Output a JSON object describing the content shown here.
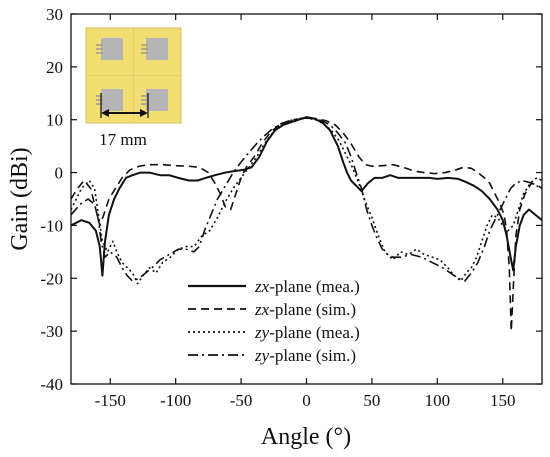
{
  "chart_data": {
    "type": "line",
    "title": "",
    "xlabel": "Angle (°)",
    "ylabel": "Gain (dBi)",
    "xlim": [
      -180,
      180
    ],
    "ylim": [
      -40,
      30
    ],
    "xticks": [
      -150,
      -100,
      -50,
      0,
      50,
      100,
      150
    ],
    "yticks": [
      -40,
      -30,
      -20,
      -10,
      0,
      10,
      20,
      30
    ],
    "grid": false,
    "legend_position": "bottom-center",
    "inset": {
      "description": "antenna array photo",
      "dimension_label": "17 mm",
      "colors": {
        "board": "#f2de73",
        "patch": "#b5b5b5",
        "slot": "#e8e8e8"
      }
    },
    "series": [
      {
        "name_italic": "zx",
        "name_rest": "-plane (mea.)",
        "style": "solid",
        "points": [
          [
            -180,
            -10
          ],
          [
            -172,
            -9
          ],
          [
            -166,
            -9.5
          ],
          [
            -161,
            -11
          ],
          [
            -158,
            -14
          ],
          [
            -156,
            -19.5
          ],
          [
            -154,
            -13
          ],
          [
            -151,
            -8
          ],
          [
            -147,
            -5
          ],
          [
            -143,
            -3
          ],
          [
            -138,
            -1
          ],
          [
            -133,
            -0.5
          ],
          [
            -127,
            0
          ],
          [
            -120,
            0
          ],
          [
            -112,
            -0.5
          ],
          [
            -105,
            -0.5
          ],
          [
            -98,
            -1
          ],
          [
            -90,
            -1.5
          ],
          [
            -83,
            -1.5
          ],
          [
            -77,
            -1
          ],
          [
            -70,
            -0.5
          ],
          [
            -62,
            0
          ],
          [
            -55,
            0.3
          ],
          [
            -48,
            0.5
          ],
          [
            -42,
            1
          ],
          [
            -36,
            3
          ],
          [
            -30,
            6
          ],
          [
            -24,
            8
          ],
          [
            -18,
            9
          ],
          [
            -12,
            9.5
          ],
          [
            -6,
            10
          ],
          [
            0,
            10.5
          ],
          [
            6,
            10.2
          ],
          [
            12,
            9.5
          ],
          [
            18,
            8
          ],
          [
            24,
            5
          ],
          [
            28,
            2
          ],
          [
            31,
            0
          ],
          [
            34,
            -1.5
          ],
          [
            38,
            -2.5
          ],
          [
            42,
            -3.5
          ],
          [
            47,
            -2
          ],
          [
            52,
            -1
          ],
          [
            58,
            -1
          ],
          [
            64,
            -0.5
          ],
          [
            70,
            -1
          ],
          [
            78,
            -1
          ],
          [
            86,
            -1
          ],
          [
            94,
            -1
          ],
          [
            100,
            -1.2
          ],
          [
            108,
            -1
          ],
          [
            116,
            -1.2
          ],
          [
            122,
            -1.8
          ],
          [
            128,
            -2.5
          ],
          [
            134,
            -3.5
          ],
          [
            140,
            -5
          ],
          [
            146,
            -7
          ],
          [
            150,
            -9
          ],
          [
            153,
            -12
          ],
          [
            156,
            -16
          ],
          [
            158,
            -18.5
          ],
          [
            160,
            -14
          ],
          [
            163,
            -10
          ],
          [
            166,
            -8
          ],
          [
            170,
            -7
          ],
          [
            175,
            -8
          ],
          [
            180,
            -9
          ]
        ]
      },
      {
        "name_italic": "zx",
        "name_rest": "-plane (sim.)",
        "style": "dashed",
        "points": [
          [
            -180,
            -5
          ],
          [
            -175,
            -3
          ],
          [
            -170,
            -1.5
          ],
          [
            -165,
            -3
          ],
          [
            -161,
            -7
          ],
          [
            -158,
            -10
          ],
          [
            -155,
            -8
          ],
          [
            -151,
            -5
          ],
          [
            -146,
            -3
          ],
          [
            -141,
            -1
          ],
          [
            -135,
            0.5
          ],
          [
            -128,
            1.2
          ],
          [
            -120,
            1.5
          ],
          [
            -110,
            1.5
          ],
          [
            -100,
            1.3
          ],
          [
            -90,
            1.2
          ],
          [
            -82,
            1
          ],
          [
            -75,
            0
          ],
          [
            -70,
            -2
          ],
          [
            -66,
            -4
          ],
          [
            -62,
            -6.5
          ],
          [
            -58,
            -7
          ],
          [
            -54,
            -4
          ],
          [
            -50,
            -1
          ],
          [
            -46,
            1
          ],
          [
            -40,
            3
          ],
          [
            -34,
            5.5
          ],
          [
            -28,
            7.5
          ],
          [
            -22,
            8.8
          ],
          [
            -15,
            9.5
          ],
          [
            -8,
            10
          ],
          [
            0,
            10.3
          ],
          [
            8,
            10.2
          ],
          [
            15,
            9.8
          ],
          [
            22,
            9
          ],
          [
            28,
            7.5
          ],
          [
            34,
            5.5
          ],
          [
            40,
            3
          ],
          [
            45,
            1.5
          ],
          [
            50,
            1.2
          ],
          [
            58,
            1.3
          ],
          [
            66,
            1.5
          ],
          [
            74,
            1
          ],
          [
            82,
            0.3
          ],
          [
            90,
            0
          ],
          [
            98,
            -0.2
          ],
          [
            106,
            0
          ],
          [
            114,
            0.5
          ],
          [
            120,
            1
          ],
          [
            126,
            0.8
          ],
          [
            131,
            0
          ],
          [
            136,
            -1
          ],
          [
            140,
            -2
          ],
          [
            144,
            -4
          ],
          [
            148,
            -6
          ],
          [
            151,
            -8
          ],
          [
            153,
            -11
          ],
          [
            155,
            -18
          ],
          [
            156.5,
            -30
          ],
          [
            158,
            -22
          ],
          [
            160,
            -12
          ],
          [
            163,
            -7
          ],
          [
            167,
            -4
          ],
          [
            172,
            -2
          ],
          [
            177,
            -2.5
          ],
          [
            180,
            -3
          ]
        ]
      },
      {
        "name_italic": "zy",
        "name_rest": "-plane (mea.)",
        "style": "dotted",
        "points": [
          [
            -180,
            -7
          ],
          [
            -172,
            -3
          ],
          [
            -166,
            -1.5
          ],
          [
            -162,
            -3
          ],
          [
            -159,
            -8
          ],
          [
            -156,
            -13
          ],
          [
            -152,
            -15
          ],
          [
            -148,
            -13
          ],
          [
            -145,
            -15
          ],
          [
            -141,
            -17
          ],
          [
            -137,
            -18
          ],
          [
            -133,
            -19
          ],
          [
            -129,
            -21
          ],
          [
            -125,
            -19.5
          ],
          [
            -120,
            -18
          ],
          [
            -115,
            -19
          ],
          [
            -110,
            -17
          ],
          [
            -104,
            -16
          ],
          [
            -98,
            -14.5
          ],
          [
            -92,
            -14
          ],
          [
            -86,
            -14
          ],
          [
            -80,
            -12
          ],
          [
            -74,
            -11
          ],
          [
            -68,
            -8.5
          ],
          [
            -62,
            -5.5
          ],
          [
            -56,
            -3
          ],
          [
            -50,
            -1
          ],
          [
            -44,
            1
          ],
          [
            -38,
            3
          ],
          [
            -32,
            5.5
          ],
          [
            -26,
            7.5
          ],
          [
            -20,
            9
          ],
          [
            -13,
            9.8
          ],
          [
            -6,
            10.2
          ],
          [
            0,
            10.3
          ],
          [
            7,
            10
          ],
          [
            13,
            9.2
          ],
          [
            19,
            8
          ],
          [
            25,
            6
          ],
          [
            30,
            3.5
          ],
          [
            35,
            1
          ],
          [
            40,
            -2
          ],
          [
            45,
            -5.5
          ],
          [
            50,
            -8.5
          ],
          [
            55,
            -12
          ],
          [
            60,
            -15
          ],
          [
            66,
            -16.5
          ],
          [
            72,
            -15
          ],
          [
            78,
            -15.5
          ],
          [
            84,
            -14.5
          ],
          [
            90,
            -15.5
          ],
          [
            96,
            -16
          ],
          [
            102,
            -16.5
          ],
          [
            108,
            -18
          ],
          [
            113,
            -19.5
          ],
          [
            118,
            -20.5
          ],
          [
            122,
            -19
          ],
          [
            126,
            -18
          ],
          [
            130,
            -16
          ],
          [
            134,
            -13
          ],
          [
            138,
            -10
          ],
          [
            142,
            -8
          ],
          [
            146,
            -8.5
          ],
          [
            150,
            -10
          ],
          [
            154,
            -11
          ],
          [
            158,
            -10
          ],
          [
            162,
            -7
          ],
          [
            166,
            -4
          ],
          [
            171,
            -2
          ],
          [
            176,
            -1
          ],
          [
            180,
            -1.5
          ]
        ]
      },
      {
        "name_italic": "zy",
        "name_rest": "-plane (sim.)",
        "style": "dashdot",
        "points": [
          [
            -180,
            -8
          ],
          [
            -173,
            -6
          ],
          [
            -167,
            -5
          ],
          [
            -162,
            -6
          ],
          [
            -159,
            -9
          ],
          [
            -157,
            -13
          ],
          [
            -154,
            -16
          ],
          [
            -150,
            -15
          ],
          [
            -145,
            -16
          ],
          [
            -141,
            -18
          ],
          [
            -137,
            -19.5
          ],
          [
            -133,
            -20.5
          ],
          [
            -128,
            -20
          ],
          [
            -123,
            -19
          ],
          [
            -118,
            -18
          ],
          [
            -112,
            -16.5
          ],
          [
            -105,
            -15.5
          ],
          [
            -98,
            -14.5
          ],
          [
            -92,
            -14.5
          ],
          [
            -86,
            -15
          ],
          [
            -82,
            -14
          ],
          [
            -78,
            -11
          ],
          [
            -73,
            -8
          ],
          [
            -68,
            -5
          ],
          [
            -62,
            -2.5
          ],
          [
            -56,
            0
          ],
          [
            -50,
            2
          ],
          [
            -44,
            3.8
          ],
          [
            -38,
            5.5
          ],
          [
            -32,
            7
          ],
          [
            -26,
            8.3
          ],
          [
            -19,
            9.3
          ],
          [
            -12,
            9.9
          ],
          [
            -6,
            10.2
          ],
          [
            0,
            10.3
          ],
          [
            6,
            10.2
          ],
          [
            12,
            9.8
          ],
          [
            18,
            9
          ],
          [
            24,
            7.5
          ],
          [
            30,
            5.5
          ],
          [
            34,
            3
          ],
          [
            38,
            0
          ],
          [
            42,
            -3
          ],
          [
            46,
            -7
          ],
          [
            50,
            -10
          ],
          [
            54,
            -12.5
          ],
          [
            58,
            -14.5
          ],
          [
            62,
            -15.5
          ],
          [
            66,
            -16
          ],
          [
            72,
            -16
          ],
          [
            80,
            -15.5
          ],
          [
            88,
            -16
          ],
          [
            96,
            -17
          ],
          [
            104,
            -18
          ],
          [
            110,
            -19
          ],
          [
            116,
            -20
          ],
          [
            121,
            -20.5
          ],
          [
            126,
            -19
          ],
          [
            131,
            -17
          ],
          [
            136,
            -14
          ],
          [
            140,
            -11
          ],
          [
            144,
            -9
          ],
          [
            148,
            -7
          ],
          [
            152,
            -5
          ],
          [
            156,
            -3
          ],
          [
            160,
            -2
          ],
          [
            165,
            -1.5
          ],
          [
            172,
            -2
          ],
          [
            180,
            -3
          ]
        ]
      }
    ]
  }
}
